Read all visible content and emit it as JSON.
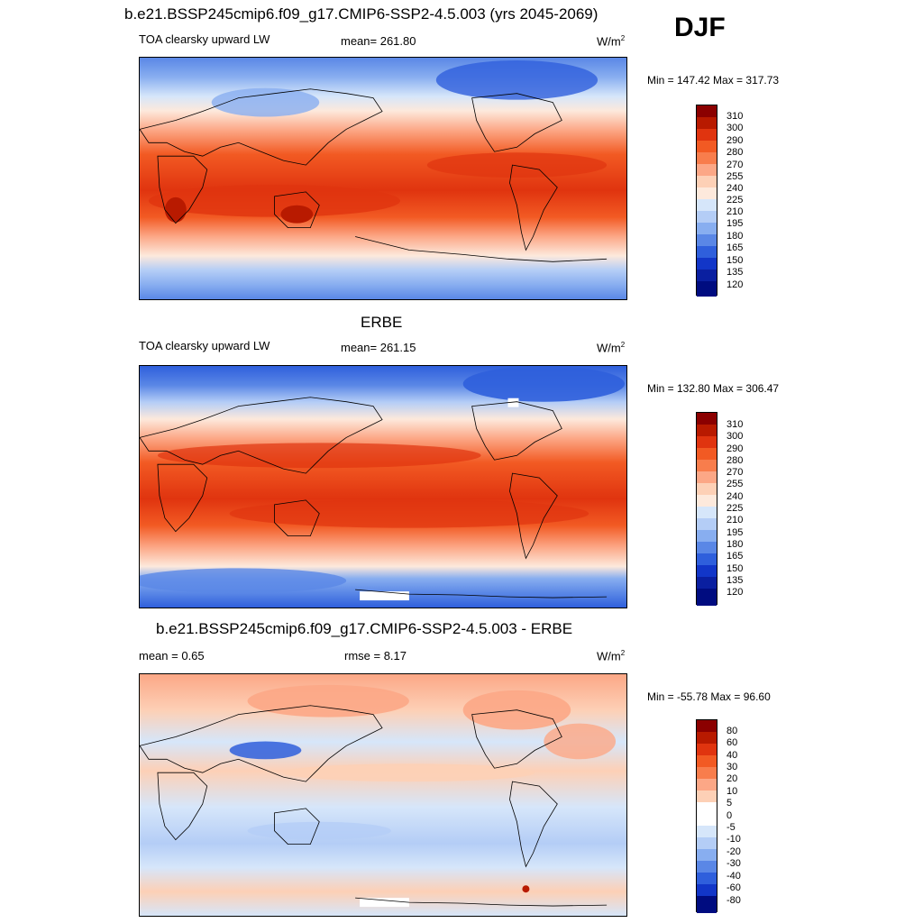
{
  "season": "DJF",
  "panels": [
    {
      "id": "model",
      "title": "b.e21.BSSP245cmip6.f09_g17.CMIP6-SSP2-4.5.003 (yrs 2045-2069)",
      "left_label": "TOA clearsky upward LW",
      "center_label": "mean= 261.80",
      "units": "W/m",
      "units_sup": "2",
      "minmax": "Min = 147.42 Max = 317.73",
      "colorbar": {
        "labels": [
          "310",
          "300",
          "290",
          "280",
          "270",
          "255",
          "240",
          "225",
          "210",
          "195",
          "180",
          "165",
          "150",
          "135",
          "120"
        ],
        "colors": [
          "#8b0000",
          "#b81a00",
          "#e0340f",
          "#f25a23",
          "#f87d4c",
          "#fca786",
          "#fdd0b6",
          "#fde9dc",
          "#d6e6fa",
          "#b4cdf6",
          "#88aef0",
          "#5a87e6",
          "#2f5fdc",
          "#1236c8",
          "#0a1fa0",
          "#000c80"
        ]
      }
    },
    {
      "id": "obs",
      "title": "ERBE",
      "left_label": "TOA clearsky upward LW",
      "center_label": "mean= 261.15",
      "units": "W/m",
      "units_sup": "2",
      "minmax": "Min = 132.80 Max = 306.47",
      "colorbar": {
        "labels": [
          "310",
          "300",
          "290",
          "280",
          "270",
          "255",
          "240",
          "225",
          "210",
          "195",
          "180",
          "165",
          "150",
          "135",
          "120"
        ],
        "colors": [
          "#8b0000",
          "#b81a00",
          "#e0340f",
          "#f25a23",
          "#f87d4c",
          "#fca786",
          "#fdd0b6",
          "#fde9dc",
          "#d6e6fa",
          "#b4cdf6",
          "#88aef0",
          "#5a87e6",
          "#2f5fdc",
          "#1236c8",
          "#0a1fa0",
          "#000c80"
        ]
      }
    },
    {
      "id": "diff",
      "title": "b.e21.BSSP245cmip6.f09_g17.CMIP6-SSP2-4.5.003 - ERBE",
      "left_label": "mean =   0.65",
      "center_label": "rmse =   8.17",
      "units": "W/m",
      "units_sup": "2",
      "minmax": "Min = -55.78 Max =  96.60",
      "colorbar": {
        "labels": [
          "80",
          "60",
          "40",
          "30",
          "20",
          "10",
          "5",
          "0",
          "-5",
          "-10",
          "-20",
          "-30",
          "-40",
          "-60",
          "-80"
        ],
        "colors": [
          "#8b0000",
          "#b81a00",
          "#e0340f",
          "#f25a23",
          "#f87d4c",
          "#fca786",
          "#fdd0b6",
          "#ffffff",
          "#ffffff",
          "#d6e6fa",
          "#b4cdf6",
          "#88aef0",
          "#5a87e6",
          "#2f5fdc",
          "#1236c8",
          "#000c80"
        ]
      }
    }
  ]
}
